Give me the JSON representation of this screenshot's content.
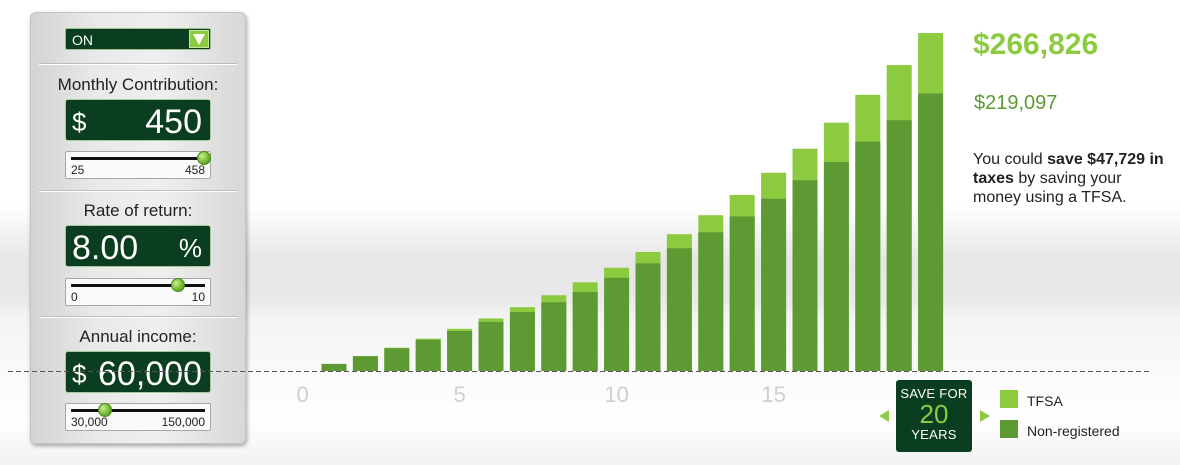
{
  "controls": {
    "toggle_value": "ON",
    "monthly": {
      "label": "Monthly Contribution:",
      "prefix": "$",
      "value": "450",
      "slider_min": "25",
      "slider_max": "458",
      "slider_fraction": 0.99
    },
    "rate": {
      "label": "Rate of return:",
      "value": "8.00",
      "suffix": "%",
      "slider_min": "0",
      "slider_max": "10",
      "slider_fraction": 0.8
    },
    "income": {
      "label": "Annual income:",
      "prefix": "$",
      "value": "60,000",
      "slider_min": "30,000",
      "slider_max": "150,000",
      "slider_fraction": 0.25
    }
  },
  "summary": {
    "tfsa_total": "$266,826",
    "nonreg_total": "$219,097",
    "message_pre": "You could ",
    "message_bold": "save $47,729 in taxes",
    "message_post": " by saving your money using a TFSA."
  },
  "badge": {
    "line1": "SAVE FOR",
    "years": "20",
    "line3": "YEARS"
  },
  "legend": [
    {
      "name": "TFSA",
      "color": "#8ccb40"
    },
    {
      "name": "Non-registered",
      "color": "#5e9a33"
    }
  ],
  "icons": {
    "dropdown": "triangle-down-icon",
    "prev": "triangle-left-icon",
    "next": "triangle-right-icon"
  },
  "chart_data": {
    "type": "bar",
    "x": [
      1,
      2,
      3,
      4,
      5,
      6,
      7,
      8,
      9,
      10,
      11,
      12,
      13,
      14,
      15,
      16,
      17,
      18,
      19,
      20
    ],
    "tick_labels": [
      "0",
      "5",
      "10",
      "15"
    ],
    "series": [
      {
        "name": "Non-registered",
        "color": "#5e9a33",
        "values": [
          5600,
          11700,
          18000,
          24700,
          31600,
          38800,
          46500,
          54300,
          62400,
          73600,
          85000,
          96900,
          109500,
          122000,
          136000,
          150600,
          165000,
          181000,
          198000,
          219097
        ]
      },
      {
        "name": "TFSA",
        "color": "#8ccb40",
        "values": [
          5600,
          11800,
          18400,
          25500,
          33300,
          41500,
          50400,
          59800,
          70000,
          81500,
          94000,
          108000,
          123000,
          139000,
          156500,
          175500,
          196000,
          218000,
          241500,
          266826
        ]
      }
    ],
    "ylim": [
      0,
      266826
    ],
    "grid": false,
    "legend": "right"
  }
}
